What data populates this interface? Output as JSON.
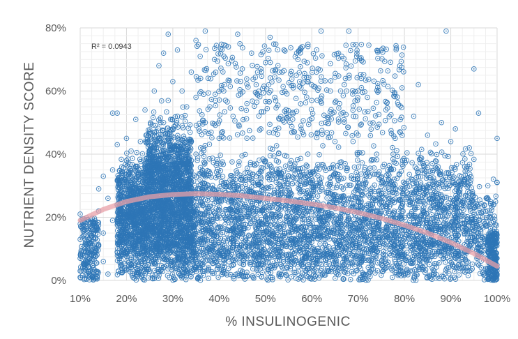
{
  "chart_data": {
    "type": "scatter",
    "title": "",
    "xlabel": "% INSULINOGENIC",
    "ylabel": "NUTRIENT DENSITY SCORE",
    "xlim": [
      0.1,
      1.0
    ],
    "ylim": [
      0.0,
      0.8
    ],
    "x_ticks": [
      {
        "value": 0.1,
        "label": "10%"
      },
      {
        "value": 0.2,
        "label": "20%"
      },
      {
        "value": 0.3,
        "label": "30%"
      },
      {
        "value": 0.4,
        "label": "40%"
      },
      {
        "value": 0.5,
        "label": "50%"
      },
      {
        "value": 0.6,
        "label": "60%"
      },
      {
        "value": 0.7,
        "label": "70%"
      },
      {
        "value": 0.8,
        "label": "80%"
      },
      {
        "value": 0.9,
        "label": "90%"
      },
      {
        "value": 1.0,
        "label": "100%"
      }
    ],
    "y_ticks": [
      {
        "value": 0.0,
        "label": "0%"
      },
      {
        "value": 0.2,
        "label": "20%"
      },
      {
        "value": 0.4,
        "label": "40%"
      },
      {
        "value": 0.6,
        "label": "60%"
      },
      {
        "value": 0.8,
        "label": "80%"
      }
    ],
    "grid": true,
    "marker_color": "#2E75B6",
    "trendline": {
      "type": "polynomial",
      "color": "#E8A0A8",
      "points": [
        [
          0.1,
          0.19
        ],
        [
          0.15,
          0.225
        ],
        [
          0.2,
          0.25
        ],
        [
          0.25,
          0.265
        ],
        [
          0.3,
          0.272
        ],
        [
          0.35,
          0.275
        ],
        [
          0.4,
          0.273
        ],
        [
          0.45,
          0.268
        ],
        [
          0.5,
          0.26
        ],
        [
          0.55,
          0.252
        ],
        [
          0.6,
          0.242
        ],
        [
          0.65,
          0.23
        ],
        [
          0.7,
          0.215
        ],
        [
          0.75,
          0.197
        ],
        [
          0.8,
          0.175
        ],
        [
          0.85,
          0.15
        ],
        [
          0.9,
          0.12
        ],
        [
          0.95,
          0.085
        ],
        [
          1.0,
          0.045
        ]
      ]
    },
    "annotation": {
      "label": "R² = 0.0943"
    },
    "series": [
      {
        "points": [
          [
            0.1,
            0.21
          ],
          [
            0.1,
            0.13
          ],
          [
            0.1,
            0.07
          ],
          [
            0.1,
            0.03
          ],
          [
            0.1,
            0.01
          ],
          [
            0.11,
            0.1
          ],
          [
            0.11,
            0.16
          ],
          [
            0.11,
            0.05
          ],
          [
            0.12,
            0.12
          ],
          [
            0.12,
            0.02
          ],
          [
            0.13,
            0.18
          ],
          [
            0.13,
            0.08
          ],
          [
            0.14,
            0.22
          ],
          [
            0.14,
            0.11
          ],
          [
            0.14,
            0.29
          ],
          [
            0.15,
            0.33
          ],
          [
            0.15,
            0.06
          ],
          [
            0.15,
            0.15
          ],
          [
            0.16,
            0.26
          ],
          [
            0.16,
            0.02
          ],
          [
            0.17,
            0.19
          ],
          [
            0.17,
            0.53
          ],
          [
            0.17,
            0.35
          ],
          [
            0.18,
            0.24
          ],
          [
            0.18,
            0.53
          ],
          [
            0.18,
            0.43
          ],
          [
            0.18,
            0.09
          ],
          [
            0.19,
            0.28
          ],
          [
            0.19,
            0.31
          ],
          [
            0.19,
            0.16
          ],
          [
            0.2,
            0.22
          ],
          [
            0.2,
            0.38
          ],
          [
            0.2,
            0.45
          ],
          [
            0.2,
            0.12
          ],
          [
            0.21,
            0.27
          ],
          [
            0.21,
            0.33
          ],
          [
            0.21,
            0.19
          ],
          [
            0.21,
            0.41
          ],
          [
            0.22,
            0.25
          ],
          [
            0.22,
            0.36
          ],
          [
            0.22,
            0.3
          ],
          [
            0.22,
            0.51
          ],
          [
            0.22,
            0.08
          ],
          [
            0.23,
            0.28
          ],
          [
            0.23,
            0.34
          ],
          [
            0.23,
            0.22
          ],
          [
            0.23,
            0.44
          ],
          [
            0.24,
            0.31
          ],
          [
            0.24,
            0.37
          ],
          [
            0.24,
            0.26
          ],
          [
            0.24,
            0.54
          ],
          [
            0.25,
            0.29
          ],
          [
            0.25,
            0.4
          ],
          [
            0.25,
            0.33
          ],
          [
            0.25,
            0.18
          ],
          [
            0.25,
            0.47
          ],
          [
            0.26,
            0.35
          ],
          [
            0.26,
            0.28
          ],
          [
            0.26,
            0.42
          ],
          [
            0.26,
            0.6
          ],
          [
            0.27,
            0.38
          ],
          [
            0.27,
            0.31
          ],
          [
            0.27,
            0.45
          ],
          [
            0.27,
            0.25
          ],
          [
            0.27,
            0.68
          ],
          [
            0.28,
            0.36
          ],
          [
            0.28,
            0.41
          ],
          [
            0.28,
            0.3
          ],
          [
            0.28,
            0.5
          ],
          [
            0.28,
            0.72
          ],
          [
            0.29,
            0.39
          ],
          [
            0.29,
            0.44
          ],
          [
            0.29,
            0.33
          ],
          [
            0.29,
            0.57
          ],
          [
            0.29,
            0.78
          ],
          [
            0.3,
            0.42
          ],
          [
            0.3,
            0.36
          ],
          [
            0.3,
            0.48
          ],
          [
            0.3,
            0.28
          ],
          [
            0.3,
            0.63
          ],
          [
            0.31,
            0.4
          ],
          [
            0.31,
            0.45
          ],
          [
            0.31,
            0.34
          ],
          [
            0.31,
            0.52
          ],
          [
            0.31,
            0.73
          ],
          [
            0.32,
            0.43
          ],
          [
            0.32,
            0.37
          ],
          [
            0.32,
            0.49
          ],
          [
            0.32,
            0.6
          ],
          [
            0.33,
            0.41
          ],
          [
            0.33,
            0.35
          ],
          [
            0.33,
            0.55
          ],
          [
            0.33,
            0.3
          ],
          [
            0.34,
            0.44
          ],
          [
            0.34,
            0.38
          ],
          [
            0.34,
            0.66
          ],
          [
            0.35,
            0.4
          ],
          [
            0.35,
            0.58
          ],
          [
            0.35,
            0.76
          ],
          [
            0.36,
            0.42
          ],
          [
            0.36,
            0.64
          ],
          [
            0.37,
            0.79
          ],
          [
            0.37,
            0.5
          ],
          [
            0.38,
            0.55
          ],
          [
            0.39,
            0.7
          ],
          [
            0.4,
            0.45
          ],
          [
            0.41,
            0.6
          ],
          [
            0.42,
            0.74
          ],
          [
            0.43,
            0.52
          ],
          [
            0.44,
            0.78
          ],
          [
            0.45,
            0.67
          ],
          [
            0.46,
            0.56
          ],
          [
            0.47,
            0.72
          ],
          [
            0.48,
            0.62
          ],
          [
            0.49,
            0.48
          ],
          [
            0.5,
            0.69
          ],
          [
            0.51,
            0.77
          ],
          [
            0.52,
            0.58
          ],
          [
            0.53,
            0.66
          ],
          [
            0.54,
            0.73
          ],
          [
            0.55,
            0.52
          ],
          [
            0.56,
            0.61
          ],
          [
            0.57,
            0.7
          ],
          [
            0.58,
            0.47
          ],
          [
            0.59,
            0.63
          ],
          [
            0.6,
            0.57
          ],
          [
            0.61,
            0.66
          ],
          [
            0.62,
            0.79
          ],
          [
            0.63,
            0.5
          ],
          [
            0.64,
            0.6
          ],
          [
            0.65,
            0.44
          ],
          [
            0.66,
            0.56
          ],
          [
            0.67,
            0.62
          ],
          [
            0.68,
            0.79
          ],
          [
            0.69,
            0.52
          ],
          [
            0.7,
            0.46
          ],
          [
            0.72,
            0.58
          ],
          [
            0.74,
            0.4
          ],
          [
            0.75,
            0.73
          ],
          [
            0.76,
            0.54
          ],
          [
            0.78,
            0.45
          ],
          [
            0.79,
            0.68
          ],
          [
            0.8,
            0.38
          ],
          [
            0.82,
            0.52
          ],
          [
            0.83,
            0.62
          ],
          [
            0.85,
            0.46
          ],
          [
            0.86,
            0.37
          ],
          [
            0.88,
            0.5
          ],
          [
            0.89,
            0.79
          ],
          [
            0.9,
            0.44
          ],
          [
            0.91,
            0.48
          ],
          [
            0.93,
            0.36
          ],
          [
            0.94,
            0.42
          ],
          [
            0.95,
            0.67
          ],
          [
            0.96,
            0.53
          ],
          [
            0.98,
            0.3
          ],
          [
            1.0,
            0.45
          ],
          [
            1.0,
            0.31
          ],
          [
            0.36,
            0.25
          ],
          [
            0.38,
            0.18
          ],
          [
            0.4,
            0.12
          ],
          [
            0.42,
            0.3
          ],
          [
            0.44,
            0.22
          ],
          [
            0.46,
            0.08
          ],
          [
            0.48,
            0.33
          ],
          [
            0.5,
            0.19
          ],
          [
            0.52,
            0.27
          ],
          [
            0.54,
            0.11
          ],
          [
            0.56,
            0.35
          ],
          [
            0.58,
            0.16
          ],
          [
            0.6,
            0.24
          ],
          [
            0.62,
            0.05
          ],
          [
            0.64,
            0.31
          ],
          [
            0.66,
            0.14
          ],
          [
            0.68,
            0.26
          ],
          [
            0.7,
            0.09
          ],
          [
            0.72,
            0.34
          ],
          [
            0.74,
            0.18
          ],
          [
            0.76,
            0.27
          ],
          [
            0.78,
            0.06
          ],
          [
            0.8,
            0.29
          ],
          [
            0.82,
            0.13
          ],
          [
            0.84,
            0.22
          ],
          [
            0.86,
            0.04
          ],
          [
            0.88,
            0.25
          ],
          [
            0.9,
            0.11
          ],
          [
            0.92,
            0.19
          ],
          [
            0.94,
            0.03
          ],
          [
            0.96,
            0.14
          ],
          [
            0.98,
            0.07
          ],
          [
            1.0,
            0.12
          ],
          [
            1.0,
            0.04
          ],
          [
            1.0,
            0.02
          ]
        ]
      }
    ]
  }
}
